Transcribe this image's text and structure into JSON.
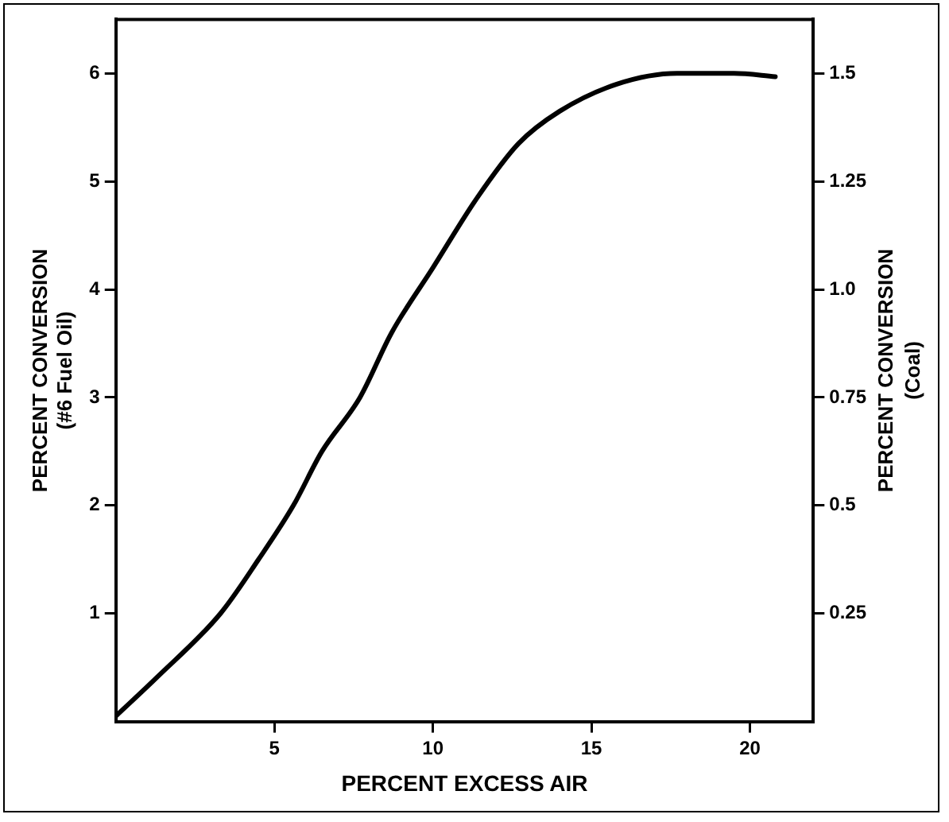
{
  "chart_data": {
    "type": "line",
    "xlabel": "PERCENT EXCESS AIR",
    "ylabel": "PERCENT CONVERSION\n(#6 Fuel Oil)",
    "y2label": "PERCENT CONVERSION\n(Coal)",
    "x": [
      0,
      1.3,
      3.3,
      4.5,
      5.6,
      6.5,
      7.7,
      8.7,
      10.0,
      11.4,
      12.7,
      14.0,
      15.8,
      17.7,
      19.5,
      20.8
    ],
    "series": [
      {
        "color": "#000000",
        "values": [
          0.05,
          0.41,
          1.0,
          1.5,
          2.0,
          2.5,
          3.0,
          3.6,
          4.2,
          4.85,
          5.35,
          5.65,
          5.9,
          6.0,
          6.0,
          5.97
        ]
      }
    ],
    "xlim": [
      0,
      22
    ],
    "xticks": [
      5,
      10,
      15,
      20
    ],
    "ylim": [
      0,
      6.5
    ],
    "yticks": [
      1,
      2,
      3,
      4,
      5,
      6
    ],
    "y2lim": [
      0,
      1.625
    ],
    "y2ticks": [
      {
        "value": 0.25,
        "label": "0.25"
      },
      {
        "value": 0.5,
        "label": "0.5"
      },
      {
        "value": 0.75,
        "label": "0.75"
      },
      {
        "value": 1,
        "label": "1.0"
      },
      {
        "value": 1.25,
        "label": "1.25"
      },
      {
        "value": 1.5,
        "label": "1.5"
      }
    ],
    "grid": false,
    "legend": false,
    "marker": "none",
    "line_style": "solid"
  }
}
